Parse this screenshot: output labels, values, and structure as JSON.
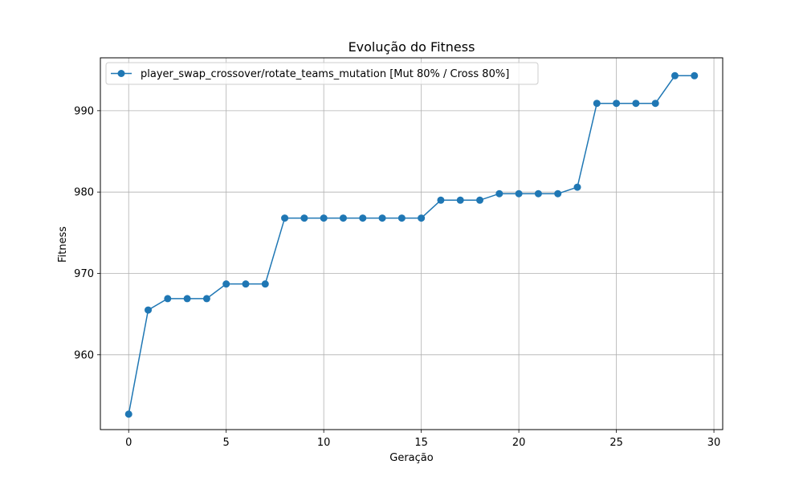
{
  "chart_data": {
    "type": "line",
    "title": "Evolução do Fitness",
    "xlabel": "Geração",
    "ylabel": "Fitness",
    "xlim": [
      -1.45,
      30.45
    ],
    "ylim": [
      950.8,
      996.5
    ],
    "xticks": [
      0,
      5,
      10,
      15,
      20,
      25,
      30
    ],
    "yticks": [
      960,
      970,
      980,
      990
    ],
    "grid": true,
    "legend_position": "top-left",
    "x": [
      0,
      1,
      2,
      3,
      4,
      5,
      6,
      7,
      8,
      9,
      10,
      11,
      12,
      13,
      14,
      15,
      16,
      17,
      18,
      19,
      20,
      21,
      22,
      23,
      24,
      25,
      26,
      27,
      28,
      29
    ],
    "series": [
      {
        "name": "player_swap_crossover/rotate_teams_mutation [Mut 80% / Cross 80%]",
        "color": "#1f77b4",
        "marker": "circle",
        "values": [
          952.7,
          965.5,
          966.9,
          966.9,
          966.9,
          968.7,
          968.7,
          968.7,
          976.8,
          976.8,
          976.8,
          976.8,
          976.8,
          976.8,
          976.8,
          976.8,
          979.0,
          979.0,
          979.0,
          979.8,
          979.8,
          979.8,
          979.8,
          980.6,
          990.9,
          990.9,
          990.9,
          990.9,
          994.3,
          994.3
        ]
      }
    ]
  }
}
